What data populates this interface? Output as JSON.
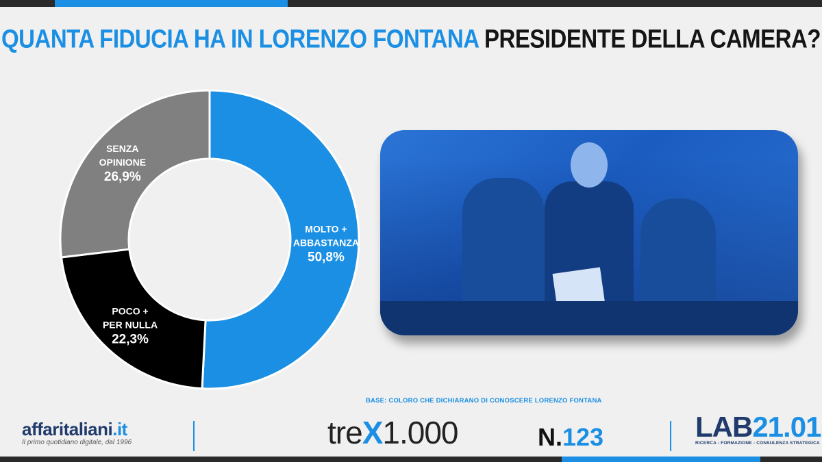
{
  "title": {
    "part1": "QUANTA FIDUCIA HA IN LORENZO FONTANA",
    "part2": "PRESIDENTE DELLA CAMERA?"
  },
  "colors": {
    "accent": "#1a8fe3",
    "dark": "#151515"
  },
  "chart_data": {
    "type": "pie",
    "variant": "donut",
    "slices": [
      {
        "lines": [
          "MOLTO +",
          "ABBASTANZA"
        ],
        "value": 50.8,
        "value_label": "50,8%",
        "color": "#1a8fe3"
      },
      {
        "lines": [
          "POCO +",
          "PER NULLA"
        ],
        "value": 22.3,
        "value_label": "22,3%",
        "color": "#000000"
      },
      {
        "lines": [
          "SENZA",
          "OPINIONE"
        ],
        "value": 26.9,
        "value_label": "26,9%",
        "color": "#808080"
      }
    ]
  },
  "base_note": "BASE: COLORO CHE DICHIARANO DI CONOSCERE LORENZO FONTANA",
  "footer": {
    "affari_name": "affaritaliani",
    "affari_tld": ".it",
    "affari_tag": "Il primo quotidiano digitale, dal 1996",
    "trex_pre": "tre",
    "trex_x": "X",
    "trex_post": "1.000",
    "issue_prefix": "N.",
    "issue_number": "123",
    "lab_name_1": "LAB",
    "lab_name_2": "21.01",
    "lab_tag": "RICERCA - FORMAZIONE - CONSULENZA STRATEGICA"
  }
}
